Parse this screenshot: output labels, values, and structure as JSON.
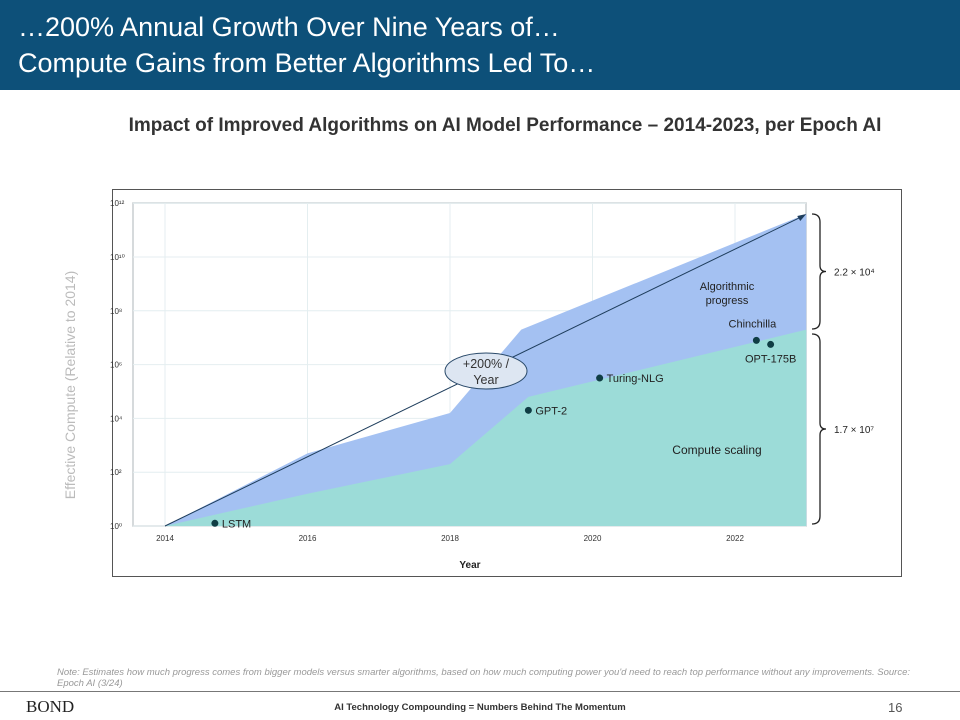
{
  "header": {
    "line1": "…200% Annual Growth Over Nine Years of…",
    "line2": "Compute Gains from Better Algorithms Led To…"
  },
  "subtitle": "Impact of Improved Algorithms on AI Model Performance – 2014-2023, per Epoch AI",
  "chart_data": {
    "type": "area",
    "xlabel": "Year",
    "ylabel": "Effective Compute (Relative to 2014)",
    "xlim": [
      2014,
      2023
    ],
    "ylim_log10": [
      0,
      12
    ],
    "x_ticks": [
      "2014",
      "2016",
      "2018",
      "2020",
      "2022"
    ],
    "y_ticks": [
      "10⁰",
      "10²",
      "10⁴",
      "10⁶",
      "10⁸",
      "10¹⁰",
      "10¹²"
    ],
    "series": [
      {
        "name": "Algorithmic progress",
        "color": "#a4c1f2",
        "x": [
          2014,
          2016,
          2018,
          2019,
          2023
        ],
        "log10_values": [
          0,
          2.7,
          4.2,
          7.3,
          11.6
        ]
      },
      {
        "name": "Compute scaling",
        "color": "#9cdcd8",
        "x": [
          2014,
          2016,
          2018,
          2019.1,
          2023
        ],
        "log10_values": [
          0,
          1.2,
          2.3,
          4.8,
          7.3
        ]
      }
    ],
    "points": [
      {
        "label": "LSTM",
        "x": 2014.7,
        "log10_value": 0.1
      },
      {
        "label": "GPT-2",
        "x": 2019.1,
        "log10_value": 4.3
      },
      {
        "label": "Turing-NLG",
        "x": 2020.1,
        "log10_value": 5.5
      },
      {
        "label": "Chinchilla",
        "x": 2022.3,
        "log10_value": 6.9
      },
      {
        "label": "OPT-175B",
        "x": 2022.5,
        "log10_value": 6.75
      }
    ],
    "trend": {
      "label_line1": "+200% /",
      "label_line2": "Year",
      "from": [
        2014,
        0
      ],
      "to": [
        2023,
        11.6
      ]
    },
    "brackets": [
      {
        "label": "2.2 × 10⁴"
      },
      {
        "label": "1.7 × 10⁷"
      }
    ],
    "area_labels": {
      "algo1": "Algorithmic",
      "algo2": "progress",
      "compute": "Compute scaling"
    }
  },
  "note": "Note: Estimates how much progress comes from bigger models versus smarter algorithms, based on how much computing power you'd need to reach top performance without any improvements. Source: Epoch AI (3/24)",
  "footer": {
    "logo": "BOND",
    "text": "AI Technology Compounding = Numbers Behind The Momentum",
    "page": "16"
  }
}
